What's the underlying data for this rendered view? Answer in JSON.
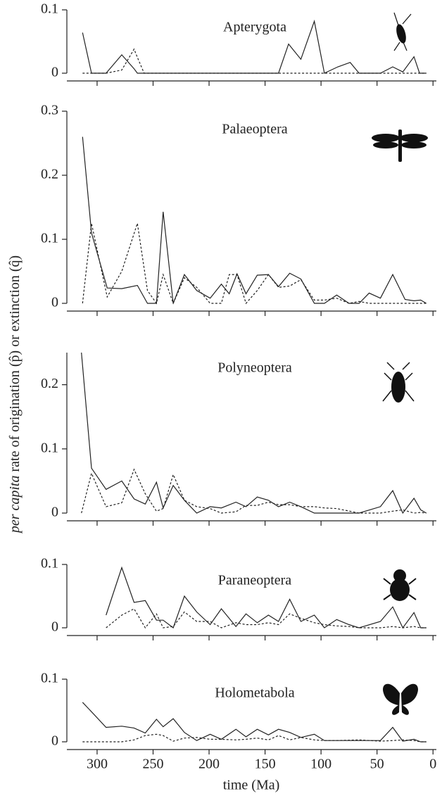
{
  "xlabel": "time (Ma)",
  "ylabel_italic": "per capita",
  "ylabel": "rate of origination (p̂) or extinction (q̂)",
  "xlim": [
    327,
    -3
  ],
  "xticks": [
    300,
    250,
    200,
    150,
    100,
    50,
    0
  ],
  "chart_data": [
    {
      "type": "line",
      "title": "Apterygota",
      "ylim": [
        0,
        0.1
      ],
      "yticks": [
        0,
        0.1
      ],
      "x": [
        313,
        305,
        292,
        278,
        267,
        264,
        258,
        138,
        129,
        118,
        106,
        97,
        85,
        74,
        66,
        47,
        36,
        27,
        17,
        12,
        6
      ],
      "series": [
        {
          "color": "#222",
          "dash": false,
          "values": [
            0.064,
            0,
            0,
            0.029,
            0.007,
            0,
            0,
            0,
            0.046,
            0.022,
            0.082,
            0,
            0.01,
            0.017,
            0,
            0,
            0.01,
            0.002,
            0.026,
            0,
            0
          ]
        },
        {
          "color": "#222",
          "dash": true,
          "values": [
            0,
            0,
            0,
            0.005,
            0.038,
            0.025,
            0,
            0,
            0,
            0,
            0,
            0,
            0,
            0,
            0,
            0,
            0,
            0,
            0,
            0,
            0
          ]
        }
      ]
    },
    {
      "type": "line",
      "title": "Palaeoptera",
      "ylim": [
        0,
        0.3
      ],
      "yticks": [
        0,
        0.1,
        0.2,
        0.3
      ],
      "x": [
        313,
        305,
        291,
        278,
        264,
        255,
        247,
        241,
        232,
        222,
        211,
        199,
        189,
        182,
        175,
        167,
        157,
        147,
        138,
        128,
        118,
        106,
        97,
        86,
        75,
        66,
        57,
        47,
        36,
        25,
        17,
        11,
        6
      ],
      "series": [
        {
          "color": "#222",
          "dash": false,
          "values": [
            0.26,
            0.11,
            0.024,
            0.023,
            0.028,
            0,
            0,
            0.143,
            0,
            0.045,
            0.02,
            0.008,
            0.03,
            0.015,
            0.046,
            0.015,
            0.044,
            0.045,
            0.026,
            0.047,
            0.038,
            0,
            0,
            0.013,
            0,
            0,
            0.016,
            0.008,
            0.045,
            0.006,
            0.004,
            0.005,
            0
          ]
        },
        {
          "color": "#222",
          "dash": true,
          "values": [
            0,
            0.125,
            0.01,
            0.05,
            0.125,
            0.02,
            0,
            0.045,
            0,
            0.04,
            0.025,
            0,
            0,
            0.045,
            0.045,
            0,
            0.02,
            0.045,
            0.025,
            0.027,
            0.037,
            0.005,
            0.005,
            0.008,
            0,
            0.003,
            0,
            0,
            0,
            0,
            0,
            0,
            0
          ]
        }
      ]
    },
    {
      "type": "line",
      "title": "Polyneoptera",
      "ylim": [
        0,
        0.25
      ],
      "yticks": [
        0,
        0.1,
        0.2
      ],
      "x": [
        314,
        305,
        292,
        278,
        267,
        257,
        247,
        241,
        232,
        222,
        211,
        199,
        189,
        176,
        167,
        157,
        147,
        138,
        128,
        118,
        106,
        97,
        86,
        66,
        47,
        36,
        27,
        17,
        11,
        6
      ],
      "series": [
        {
          "color": "#222",
          "dash": false,
          "values": [
            0.25,
            0.07,
            0.037,
            0.05,
            0.022,
            0.014,
            0.048,
            0.008,
            0.043,
            0.02,
            0,
            0.01,
            0.008,
            0.017,
            0.01,
            0.025,
            0.02,
            0.01,
            0.017,
            0.01,
            0,
            0,
            0,
            0,
            0.01,
            0.035,
            0,
            0.023,
            0.005,
            0
          ]
        },
        {
          "color": "#222",
          "dash": true,
          "values": [
            0,
            0.062,
            0.01,
            0.016,
            0.068,
            0.03,
            0.003,
            0.007,
            0.06,
            0.02,
            0.01,
            0.007,
            0,
            0.002,
            0.012,
            0.012,
            0.017,
            0.013,
            0.013,
            0.01,
            0.01,
            0.008,
            0.007,
            0,
            0,
            0.003,
            0.005,
            0,
            0.001,
            0
          ]
        }
      ]
    },
    {
      "type": "line",
      "title": "Paraneoptera",
      "ylim": [
        0,
        0.1
      ],
      "yticks": [
        0,
        0.1
      ],
      "x": [
        292,
        278,
        267,
        257,
        247,
        241,
        232,
        222,
        211,
        199,
        189,
        176,
        167,
        157,
        147,
        138,
        128,
        118,
        106,
        97,
        86,
        75,
        66,
        47,
        36,
        27,
        17,
        11,
        6
      ],
      "series": [
        {
          "color": "#222",
          "dash": false,
          "values": [
            0.02,
            0.095,
            0.04,
            0.043,
            0.012,
            0.012,
            0,
            0.05,
            0.025,
            0.005,
            0.03,
            0.002,
            0.022,
            0.008,
            0.02,
            0.01,
            0.045,
            0.01,
            0.02,
            0,
            0.013,
            0.005,
            0,
            0.01,
            0.033,
            0,
            0.024,
            0,
            0
          ]
        },
        {
          "color": "#222",
          "dash": true,
          "values": [
            0,
            0.02,
            0.03,
            0,
            0.022,
            0,
            0.002,
            0.025,
            0.01,
            0.01,
            0,
            0.008,
            0.005,
            0.005,
            0.008,
            0.005,
            0.022,
            0.015,
            0.008,
            0.005,
            0.003,
            0.002,
            0,
            0,
            0.002,
            0,
            0.002,
            0,
            0
          ]
        }
      ]
    },
    {
      "type": "line",
      "title": "Holometabola",
      "ylim": [
        0,
        0.1
      ],
      "yticks": [
        0,
        0.1
      ],
      "x": [
        313,
        305,
        292,
        278,
        267,
        257,
        247,
        241,
        232,
        222,
        211,
        199,
        189,
        176,
        167,
        157,
        147,
        138,
        128,
        118,
        106,
        97,
        86,
        66,
        47,
        36,
        27,
        17,
        11,
        6
      ],
      "series": [
        {
          "color": "#222",
          "dash": false,
          "values": [
            0.063,
            0.048,
            0.023,
            0.025,
            0.022,
            0.014,
            0.036,
            0.024,
            0.037,
            0.015,
            0.002,
            0.012,
            0.004,
            0.02,
            0.008,
            0.02,
            0.011,
            0.02,
            0.015,
            0.007,
            0.012,
            0.002,
            0.002,
            0.002,
            0.002,
            0.023,
            0.001,
            0.004,
            0,
            0
          ]
        },
        {
          "color": "#222",
          "dash": true,
          "values": [
            0,
            0,
            0,
            0,
            0.003,
            0.01,
            0.012,
            0.01,
            0.001,
            0.006,
            0.007,
            0.004,
            0.004,
            0.003,
            0.004,
            0.006,
            0.003,
            0.01,
            0.003,
            0.007,
            0.003,
            0.002,
            0.002,
            0.003,
            0.001,
            0.002,
            0.003,
            0.002,
            0,
            0
          ]
        }
      ]
    }
  ]
}
